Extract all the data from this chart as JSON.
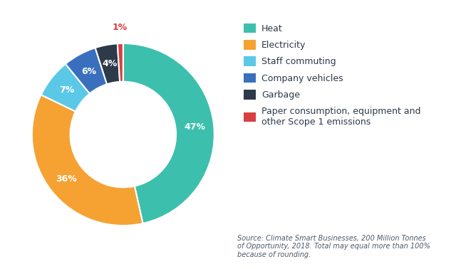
{
  "labels": [
    "Heat",
    "Electricity",
    "Staff commuting",
    "Company vehicles",
    "Garbage",
    "Paper consumption, equipment and\nother Scope 1 emissions"
  ],
  "values": [
    47,
    36,
    7,
    6,
    4,
    1
  ],
  "colors": [
    "#3dbfad",
    "#f5a233",
    "#5bc8e8",
    "#3a6fbe",
    "#2d3a4a",
    "#d93f3f"
  ],
  "pct_labels": [
    "47%",
    "36%",
    "7%",
    "6%",
    "4%",
    "1%"
  ],
  "legend_labels": [
    "Heat",
    "Electricity",
    "Staff commuting",
    "Company vehicles",
    "Garbage",
    "Paper consumption, equipment and\nother Scope 1 emissions"
  ],
  "source_text": "Source: Climate Smart Businesses, 200 Million Tonnes\nof Opportunity, 2018. Total may equal more than 100%\nbecause of rounding.",
  "background_color": "#ffffff",
  "text_color": "#2d3a4a",
  "donut_width": 0.42
}
